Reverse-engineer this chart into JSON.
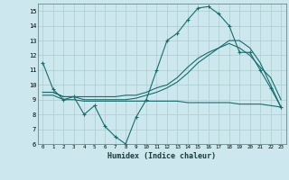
{
  "xlabel": "Humidex (Indice chaleur)",
  "bg_color": "#cce8ee",
  "grid_color": "#aacccc",
  "line_color": "#1a6b6b",
  "xlim": [
    -0.5,
    23.5
  ],
  "ylim": [
    6,
    15.5
  ],
  "xticks": [
    0,
    1,
    2,
    3,
    4,
    5,
    6,
    7,
    8,
    9,
    10,
    11,
    12,
    13,
    14,
    15,
    16,
    17,
    18,
    19,
    20,
    21,
    22,
    23
  ],
  "yticks": [
    6,
    7,
    8,
    9,
    10,
    11,
    12,
    13,
    14,
    15
  ],
  "series": [
    {
      "x": [
        0,
        1,
        2,
        3,
        4,
        5,
        6,
        7,
        8,
        9,
        10,
        11,
        12,
        13,
        14,
        15,
        16,
        17,
        18,
        19,
        20,
        21,
        22,
        23
      ],
      "y": [
        11.5,
        9.7,
        9.0,
        9.2,
        8.0,
        8.6,
        7.2,
        6.5,
        6.0,
        7.8,
        9.0,
        11.0,
        13.0,
        13.5,
        14.4,
        15.2,
        15.3,
        14.8,
        14.0,
        12.2,
        12.2,
        11.0,
        9.8,
        8.5
      ],
      "marker": "+"
    },
    {
      "x": [
        0,
        1,
        2,
        3,
        4,
        5,
        6,
        7,
        8,
        9,
        10,
        11,
        12,
        13,
        14,
        15,
        16,
        17,
        18,
        19,
        20,
        21,
        22,
        23
      ],
      "y": [
        9.5,
        9.5,
        9.2,
        9.2,
        9.2,
        9.2,
        9.2,
        9.2,
        9.3,
        9.3,
        9.5,
        9.8,
        10.0,
        10.5,
        11.2,
        11.8,
        12.2,
        12.5,
        12.8,
        12.5,
        12.0,
        11.2,
        10.5,
        9.0
      ],
      "marker": null
    },
    {
      "x": [
        0,
        1,
        2,
        3,
        4,
        5,
        6,
        7,
        8,
        9,
        10,
        11,
        12,
        13,
        14,
        15,
        16,
        17,
        18,
        19,
        20,
        21,
        22,
        23
      ],
      "y": [
        9.5,
        9.5,
        9.2,
        9.2,
        9.0,
        9.0,
        9.0,
        9.0,
        9.0,
        9.1,
        9.3,
        9.5,
        9.8,
        10.2,
        10.8,
        11.5,
        12.0,
        12.5,
        13.0,
        13.0,
        12.5,
        11.5,
        10.0,
        8.5
      ],
      "marker": null
    },
    {
      "x": [
        0,
        1,
        2,
        3,
        4,
        5,
        6,
        7,
        8,
        9,
        10,
        11,
        12,
        13,
        14,
        15,
        16,
        17,
        18,
        19,
        20,
        21,
        22,
        23
      ],
      "y": [
        9.3,
        9.3,
        9.0,
        9.0,
        8.9,
        8.9,
        8.9,
        8.9,
        8.9,
        8.9,
        8.9,
        8.9,
        8.9,
        8.9,
        8.8,
        8.8,
        8.8,
        8.8,
        8.8,
        8.7,
        8.7,
        8.7,
        8.6,
        8.5
      ],
      "marker": null
    }
  ]
}
